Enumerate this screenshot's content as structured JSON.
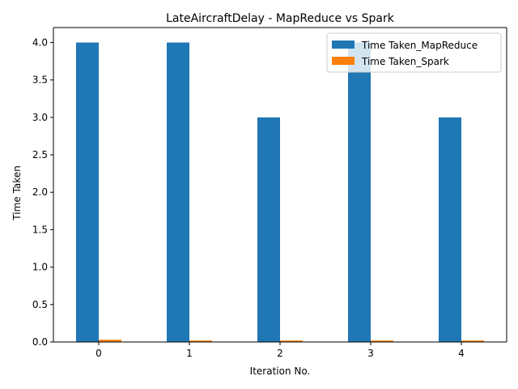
{
  "chart_data": {
    "type": "bar",
    "title": "LateAircraftDelay - MapReduce vs Spark",
    "xlabel": "Iteration No.",
    "ylabel": "Time Taken",
    "categories": [
      "0",
      "1",
      "2",
      "3",
      "4"
    ],
    "series": [
      {
        "name": "Time Taken_MapReduce",
        "color": "#1f77b4",
        "values": [
          4.0,
          4.0,
          3.0,
          4.0,
          3.0
        ]
      },
      {
        "name": "Time Taken_Spark",
        "color": "#ff7f0e",
        "values": [
          0.03,
          0.02,
          0.02,
          0.02,
          0.02
        ]
      }
    ],
    "ylim": [
      0,
      4.2
    ],
    "yticks": [
      "0.0",
      "0.5",
      "1.0",
      "1.5",
      "2.0",
      "2.5",
      "3.0",
      "3.5",
      "4.0"
    ],
    "grid": false,
    "legend_position": "top-right"
  }
}
